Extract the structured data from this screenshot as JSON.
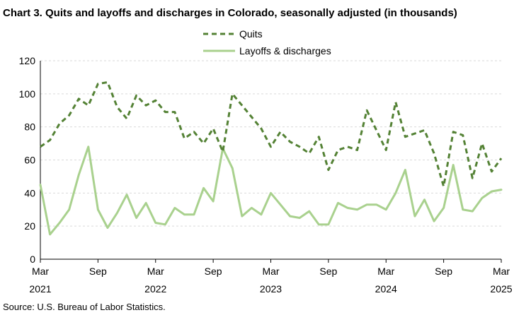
{
  "chart_data": {
    "type": "line",
    "title": "Chart 3. Quits and layoffs and discharges in Colorado, seasonally adjusted (in thousands)",
    "xlabel": "",
    "ylabel": "",
    "ylim": [
      0,
      120
    ],
    "yticks": [
      "0",
      "20",
      "40",
      "60",
      "80",
      "100",
      "120"
    ],
    "grid": true,
    "legend_position": "top-center",
    "x_tick_labels": [
      {
        "month": "Mar",
        "year": "2021"
      },
      {
        "month": "Sep",
        "year": ""
      },
      {
        "month": "Mar",
        "year": "2022"
      },
      {
        "month": "Sep",
        "year": ""
      },
      {
        "month": "Mar",
        "year": "2023"
      },
      {
        "month": "Sep",
        "year": ""
      },
      {
        "month": "Mar",
        "year": "2024"
      },
      {
        "month": "Sep",
        "year": ""
      },
      {
        "month": "Mar",
        "year": "2025"
      }
    ],
    "x": [
      "2021-03",
      "2021-04",
      "2021-05",
      "2021-06",
      "2021-07",
      "2021-08",
      "2021-09",
      "2021-10",
      "2021-11",
      "2021-12",
      "2022-01",
      "2022-02",
      "2022-03",
      "2022-04",
      "2022-05",
      "2022-06",
      "2022-07",
      "2022-08",
      "2022-09",
      "2022-10",
      "2022-11",
      "2022-12",
      "2023-01",
      "2023-02",
      "2023-03",
      "2023-04",
      "2023-05",
      "2023-06",
      "2023-07",
      "2023-08",
      "2023-09",
      "2023-10",
      "2023-11",
      "2023-12",
      "2024-01",
      "2024-02",
      "2024-03",
      "2024-04",
      "2024-05",
      "2024-06",
      "2024-07",
      "2024-08",
      "2024-09",
      "2024-10",
      "2024-11",
      "2024-12",
      "2025-01",
      "2025-02",
      "2025-03"
    ],
    "series": [
      {
        "name": "Quits",
        "color": "#548235",
        "style": "dashed",
        "values": [
          68,
          72,
          82,
          87,
          97,
          93,
          106,
          107,
          92,
          85,
          99,
          93,
          96,
          89,
          89,
          73,
          77,
          70,
          79,
          65,
          100,
          93,
          86,
          79,
          68,
          77,
          71,
          68,
          64,
          74,
          54,
          66,
          68,
          66,
          90,
          78,
          66,
          95,
          74,
          76,
          78,
          64,
          44,
          77,
          75,
          49,
          70,
          53,
          61
        ]
      },
      {
        "name": "Layoffs & discharges",
        "color": "#a9d18e",
        "style": "solid",
        "values": [
          45,
          15,
          22,
          30,
          51,
          68,
          30,
          19,
          28,
          39,
          25,
          34,
          22,
          21,
          31,
          27,
          27,
          43,
          35,
          67,
          55,
          26,
          31,
          27,
          40,
          33,
          26,
          25,
          29,
          21,
          21,
          34,
          31,
          30,
          33,
          33,
          30,
          40,
          54,
          26,
          36,
          23,
          31,
          57,
          30,
          29,
          37,
          41,
          42
        ]
      }
    ]
  },
  "source": "Source: U.S. Bureau of Labor Statistics."
}
